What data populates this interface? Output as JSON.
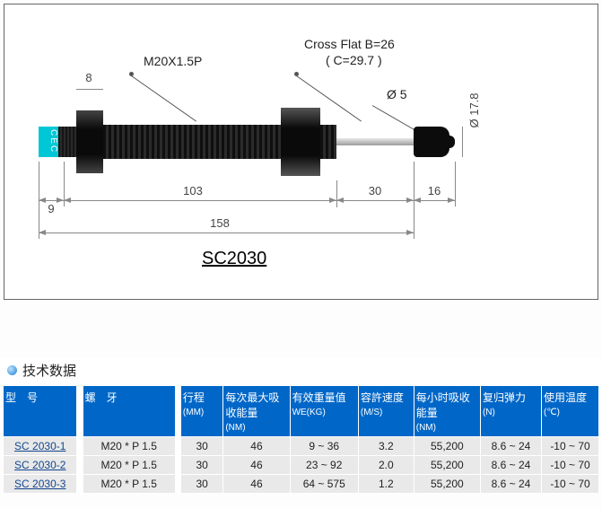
{
  "diagram": {
    "thread_label": "M20X1.5P",
    "cross_flat_label_1": "Cross Flat B=26",
    "cross_flat_label_2": "( C=29.7 )",
    "dia5": "Ø 5",
    "dia17": "Ø 17.8",
    "d8": "8",
    "d9": "9",
    "d103": "103",
    "d30": "30",
    "d16": "16",
    "d158": "158",
    "part_title": "SC2030",
    "colors": {
      "body": "#0a0a0a",
      "nut": "#1a1a1a",
      "cap_teal": "#00c7d6",
      "rod": "#bdbdbd",
      "tip": "#111111"
    }
  },
  "section": {
    "title": "技术数据"
  },
  "table": {
    "headers": {
      "model": "型　号",
      "thread": "螺　牙",
      "stroke": "行程",
      "stroke_u": "(MM)",
      "max_absorb": "每次最大吸收能量",
      "max_absorb_u": "(NM)",
      "weight": "有效重量值",
      "weight_u": "WE(KG)",
      "speed": "容許速度",
      "speed_u": "(M/S)",
      "hourly": "每小时吸收能量",
      "hourly_u": "(NM)",
      "spring": "复归弹力",
      "spring_u": "(N)",
      "temp": "使用温度",
      "temp_u": "(℃)"
    },
    "rows": [
      {
        "model": "SC 2030-1",
        "thread": "M20 * P 1.5",
        "stroke": "30",
        "max": "46",
        "weight": "9 ~ 36",
        "speed": "3.2",
        "hourly": "55,200",
        "spring": "8.6 ~ 24",
        "temp": "-10 ~ 70"
      },
      {
        "model": "SC 2030-2",
        "thread": "M20 * P 1.5",
        "stroke": "30",
        "max": "46",
        "weight": "23 ~ 92",
        "speed": "2.0",
        "hourly": "55,200",
        "spring": "8.6 ~ 24",
        "temp": "-10 ~ 70"
      },
      {
        "model": "SC 2030-3",
        "thread": "M20 * P 1.5",
        "stroke": "30",
        "max": "46",
        "weight": "64 ~ 575",
        "speed": "1.2",
        "hourly": "55,200",
        "spring": "8.6 ~ 24",
        "temp": "-10 ~ 70"
      }
    ]
  }
}
